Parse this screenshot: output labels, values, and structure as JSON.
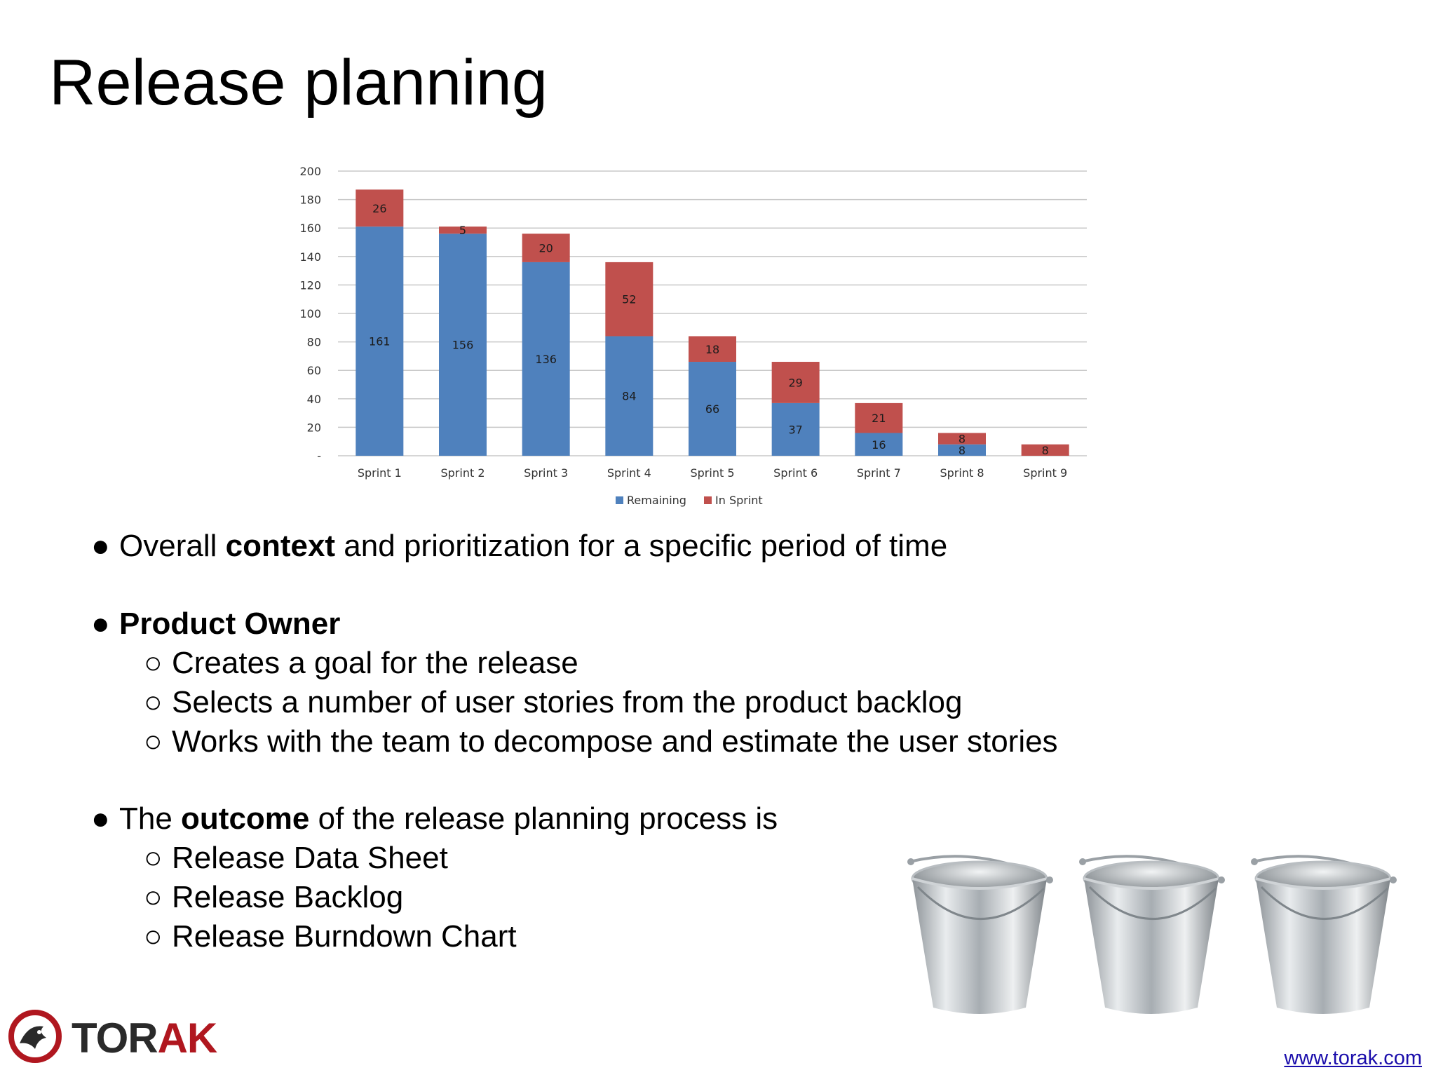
{
  "slide": {
    "title": "Release planning"
  },
  "chart_data": {
    "type": "bar",
    "stacked": true,
    "categories": [
      "Sprint 1",
      "Sprint 2",
      "Sprint 3",
      "Sprint 4",
      "Sprint 5",
      "Sprint 6",
      "Sprint 7",
      "Sprint 8",
      "Sprint 9"
    ],
    "series": [
      {
        "name": "Remaining",
        "color": "#4f81bd",
        "values": [
          161,
          156,
          136,
          84,
          66,
          37,
          16,
          8,
          0
        ],
        "labels": [
          "161",
          "156",
          "136",
          "84",
          "66",
          "37",
          "16",
          "8",
          ""
        ]
      },
      {
        "name": "In Sprint",
        "color": "#c0504d",
        "values": [
          26,
          5,
          20,
          52,
          18,
          29,
          21,
          8,
          8
        ],
        "labels": [
          "26",
          "5",
          "20",
          "52",
          "18",
          "29",
          "21",
          "8",
          "8"
        ]
      }
    ],
    "ylim": [
      0,
      200
    ],
    "yticks": [
      "-",
      "20",
      "40",
      "60",
      "80",
      "100",
      "120",
      "140",
      "160",
      "180",
      "200"
    ],
    "grid": true,
    "legend": "bottom"
  },
  "bullets": [
    {
      "parts": [
        {
          "text": "Overall ",
          "bold": false
        },
        {
          "text": "context",
          "bold": true
        },
        {
          "text": " and prioritization for a specific period of time",
          "bold": false
        }
      ]
    },
    {
      "parts": [
        {
          "text": "Product Owner",
          "bold": true
        }
      ],
      "sub": [
        "Creates a goal for the release",
        "Selects a number of user stories from the product backlog",
        "Works with the team to decompose and estimate the user stories"
      ]
    },
    {
      "parts": [
        {
          "text": "The ",
          "bold": false
        },
        {
          "text": "outcome",
          "bold": true
        },
        {
          "text": " of the release planning process is",
          "bold": false
        }
      ],
      "sub": [
        "Release Data Sheet",
        "Release Backlog",
        "Release Burndown Chart"
      ]
    }
  ],
  "markers": {
    "bullet": "●",
    "sub": "○"
  },
  "logo": {
    "text_main": "TOR",
    "text_accent": "AK"
  },
  "footer": {
    "url": "www.torak.com"
  }
}
